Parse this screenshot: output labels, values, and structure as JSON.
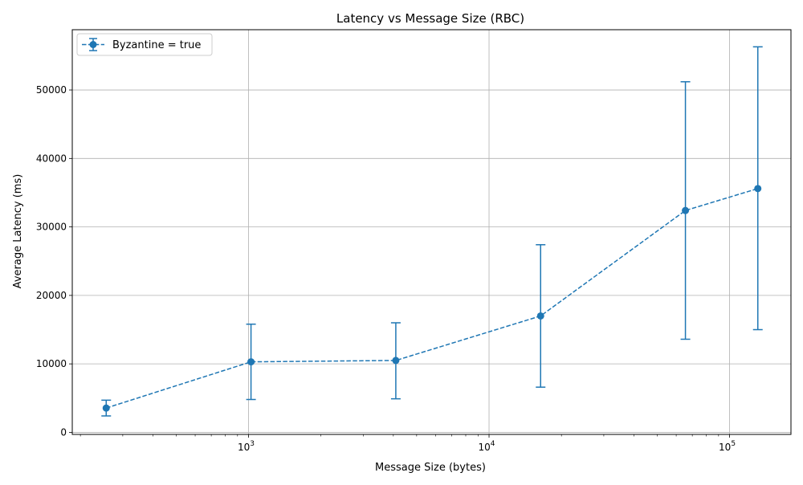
{
  "chart_data": {
    "type": "line",
    "title": "Latency vs Message Size (RBC)",
    "xlabel": "Message Size (bytes)",
    "ylabel": "Average Latency (ms)",
    "xscale": "log",
    "xlim": [
      185,
      180000
    ],
    "ylim": [
      -300,
      58800
    ],
    "x_ticks": [
      1000,
      10000,
      100000
    ],
    "x_tick_labels": [
      {
        "base": "10",
        "exp": "3"
      },
      {
        "base": "10",
        "exp": "4"
      },
      {
        "base": "10",
        "exp": "5"
      }
    ],
    "y_ticks": [
      0,
      10000,
      20000,
      30000,
      40000,
      50000
    ],
    "y_tick_labels": [
      "0",
      "10000",
      "20000",
      "30000",
      "40000",
      "50000"
    ],
    "grid": true,
    "legend_position": "top-left",
    "series": [
      {
        "name": "Byzantine = true",
        "color": "#1f77b4",
        "linestyle": "dashed",
        "marker": "circle",
        "x": [
          256,
          1024,
          4096,
          16384,
          65536,
          131072
        ],
        "y": [
          3550,
          10300,
          10500,
          17000,
          32400,
          35600
        ],
        "err_low": [
          2400,
          4800,
          4900,
          6600,
          13600,
          15000
        ],
        "err_high": [
          4700,
          15800,
          16000,
          27400,
          51200,
          56300
        ]
      }
    ]
  }
}
